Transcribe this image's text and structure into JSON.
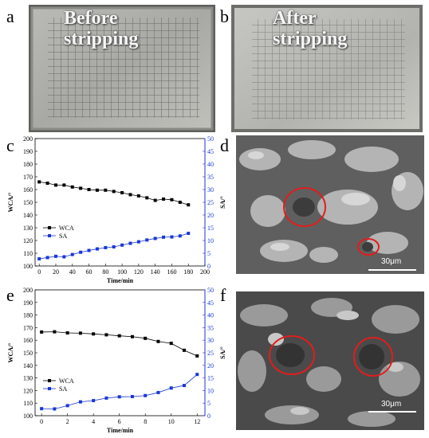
{
  "panels": {
    "a": {
      "letter": "a",
      "caption_line1": "Before",
      "caption_line2": "stripping"
    },
    "b": {
      "letter": "b",
      "caption_line1": "After",
      "caption_line2": "stripping"
    },
    "c": {
      "letter": "c"
    },
    "d": {
      "letter": "d",
      "scale": "30μm"
    },
    "e": {
      "letter": "e"
    },
    "f": {
      "letter": "f",
      "scale": "30μm"
    }
  },
  "chart_data": [
    {
      "type": "line",
      "panel": "c",
      "xlabel": "Time/min",
      "ylabel": "WCA/°",
      "y2label": "SA/°",
      "x": [
        0,
        10,
        20,
        30,
        40,
        50,
        60,
        70,
        80,
        90,
        100,
        110,
        120,
        130,
        140,
        150,
        160,
        170,
        180
      ],
      "xticks": [
        0,
        20,
        40,
        60,
        80,
        100,
        120,
        140,
        160,
        180,
        200
      ],
      "xlim": [
        -5,
        200
      ],
      "ylim": [
        100,
        200
      ],
      "yticks": [
        100,
        110,
        120,
        130,
        140,
        150,
        160,
        170,
        180,
        190,
        200
      ],
      "y2lim": [
        0,
        50
      ],
      "y2ticks": [
        0,
        5,
        10,
        15,
        20,
        25,
        30,
        35,
        40,
        45,
        50
      ],
      "legend_position": "left-middle",
      "series": [
        {
          "name": "WCA",
          "axis": "left",
          "color": "#000000",
          "marker": "square",
          "values": [
            166,
            165,
            163.5,
            163.5,
            162,
            161,
            160,
            159.5,
            159.5,
            158.5,
            157.5,
            156,
            155,
            153.5,
            151.5,
            152.5,
            152,
            150,
            148
          ]
        },
        {
          "name": "SA",
          "axis": "right",
          "color": "#1a36d8",
          "marker": "square",
          "values": [
            2.8,
            3.3,
            3.8,
            3.6,
            4.5,
            5.4,
            6.1,
            6.7,
            7.2,
            7.5,
            8.2,
            8.9,
            9.5,
            10.2,
            10.8,
            11.3,
            11.4,
            11.8,
            12.8
          ]
        }
      ]
    },
    {
      "type": "line",
      "panel": "e",
      "xlabel": "Time/min",
      "ylabel": "WCA/°",
      "y2label": "SA/°",
      "x": [
        0,
        1,
        2,
        3,
        4,
        5,
        6,
        7,
        8,
        9,
        10,
        11,
        12
      ],
      "xticks": [
        0,
        2,
        4,
        6,
        8,
        10,
        12
      ],
      "xlim": [
        -0.5,
        12.6
      ],
      "ylim": [
        100,
        200
      ],
      "yticks": [
        100,
        110,
        120,
        130,
        140,
        150,
        160,
        170,
        180,
        190,
        200
      ],
      "y2lim": [
        0,
        50
      ],
      "y2ticks": [
        0,
        5,
        10,
        15,
        20,
        25,
        30,
        35,
        40,
        45,
        50
      ],
      "legend_position": "left-middle",
      "series": [
        {
          "name": "WCA",
          "axis": "left",
          "color": "#000000",
          "marker": "square",
          "values": [
            166.5,
            166.7,
            165.8,
            165.6,
            165,
            164.3,
            163.5,
            162.8,
            161.5,
            159,
            157.5,
            152,
            147.5
          ]
        },
        {
          "name": "SA",
          "axis": "right",
          "color": "#1a36d8",
          "marker": "square",
          "values": [
            2.8,
            2.7,
            4,
            5.5,
            6,
            7,
            7.5,
            7.6,
            8,
            9.2,
            11,
            12,
            16.4
          ]
        }
      ]
    }
  ]
}
